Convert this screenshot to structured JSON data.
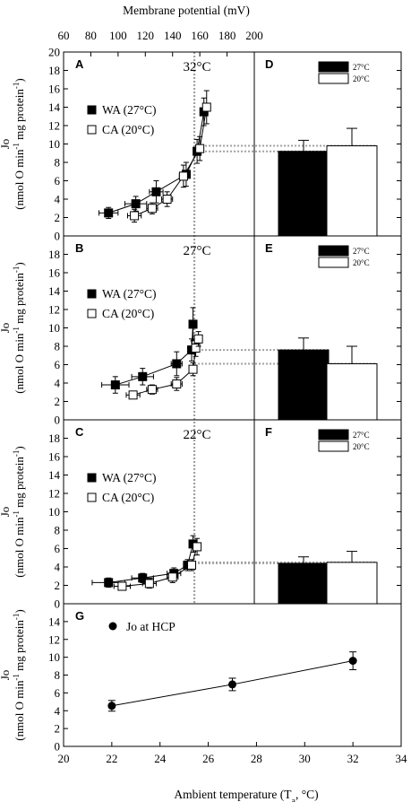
{
  "chart_data": {
    "type": "multi-panel",
    "top_axis": {
      "title": "Membrane potential (mV)",
      "range": [
        60,
        200
      ],
      "ticks": [
        "60",
        "80",
        "100",
        "120",
        "140",
        "160",
        "180",
        "200"
      ]
    },
    "x_axis": {
      "title_main": "Ambient temperature (T",
      "title_sub": "a",
      "title_end": ", °C)",
      "range": [
        20,
        34
      ],
      "ticks": [
        "20",
        "22",
        "24",
        "26",
        "28",
        "30",
        "32",
        "34"
      ]
    },
    "y_label": {
      "line1": "Jo",
      "line2_a": "(nmol O min",
      "line2_sup1": "-1",
      "line2_b": " mg protein",
      "line2_sup2": "-1",
      "line2_c": ")"
    },
    "hcp_potential_mV": 156,
    "colors": {
      "WA": "#000000",
      "CA": "#ffffff",
      "dotted_guide": "#a0a0a0"
    },
    "panels": [
      {
        "label": "A",
        "bar_label": "D",
        "temp_label": "32°C",
        "ylim": [
          0,
          20
        ],
        "yticks": [
          "0",
          "2",
          "4",
          "6",
          "8",
          "10",
          "12",
          "14",
          "16",
          "18",
          "20"
        ],
        "legend": [
          "WA (27°C)",
          "CA (20°C)"
        ],
        "series": [
          {
            "name": "WA (27°C)",
            "points": [
              {
                "x": 93,
                "y": 2.5,
                "xerr": 7,
                "yerr": 0.6
              },
              {
                "x": 113,
                "y": 3.5,
                "xerr": 8,
                "yerr": 0.8
              },
              {
                "x": 128,
                "y": 4.8,
                "xerr": 5,
                "yerr": 1.2
              },
              {
                "x": 150,
                "y": 6.7,
                "xerr": 3,
                "yerr": 1.3
              },
              {
                "x": 158,
                "y": 9.2,
                "xerr": 2,
                "yerr": 1.3
              },
              {
                "x": 163,
                "y": 13.5,
                "xerr": 2,
                "yerr": 1.5
              }
            ]
          },
          {
            "name": "CA (20°C)",
            "points": [
              {
                "x": 112,
                "y": 2.2,
                "xerr": 5,
                "yerr": 0.7
              },
              {
                "x": 125,
                "y": 3.0,
                "xerr": 4,
                "yerr": 0.6
              },
              {
                "x": 136,
                "y": 4.0,
                "xerr": 4,
                "yerr": 0.8
              },
              {
                "x": 148,
                "y": 6.5,
                "xerr": 3,
                "yerr": 1.2
              },
              {
                "x": 160,
                "y": 9.5,
                "xerr": 2,
                "yerr": 1.3
              },
              {
                "x": 165,
                "y": 14.0,
                "xerr": 2,
                "yerr": 1.8
              }
            ]
          }
        ],
        "bars": {
          "legend": [
            "27°C",
            "20°C"
          ],
          "values": [
            9.2,
            9.8
          ],
          "errors": [
            1.2,
            1.9
          ]
        }
      },
      {
        "label": "B",
        "bar_label": "E",
        "temp_label": "27°C",
        "ylim": [
          0,
          20
        ],
        "yticks": [
          "0",
          "2",
          "4",
          "6",
          "8",
          "10",
          "12",
          "14",
          "16",
          "18"
        ],
        "legend": [
          "WA (27°C)",
          "CA (20°C)"
        ],
        "series": [
          {
            "name": "WA (27°C)",
            "points": [
              {
                "x": 98,
                "y": 3.8,
                "xerr": 10,
                "yerr": 0.9
              },
              {
                "x": 118,
                "y": 4.7,
                "xerr": 8,
                "yerr": 0.9
              },
              {
                "x": 143,
                "y": 6.1,
                "xerr": 4,
                "yerr": 1.3
              },
              {
                "x": 154,
                "y": 7.6,
                "xerr": 3,
                "yerr": 1.2
              },
              {
                "x": 155,
                "y": 10.4,
                "xerr": 2,
                "yerr": 1.8
              }
            ]
          },
          {
            "name": "CA (20°C)",
            "points": [
              {
                "x": 111,
                "y": 2.7,
                "xerr": 5,
                "yerr": 0.4
              },
              {
                "x": 125,
                "y": 3.3,
                "xerr": 4,
                "yerr": 0.5
              },
              {
                "x": 143,
                "y": 3.9,
                "xerr": 4,
                "yerr": 0.7
              },
              {
                "x": 155,
                "y": 5.5,
                "xerr": 2,
                "yerr": 0.7
              },
              {
                "x": 157,
                "y": 7.8,
                "xerr": 2,
                "yerr": 0.9
              },
              {
                "x": 159,
                "y": 8.8,
                "xerr": 2,
                "yerr": 0.8
              }
            ]
          }
        ],
        "bars": {
          "legend": [
            "27°C",
            "20°C"
          ],
          "values": [
            7.6,
            6.1
          ],
          "errors": [
            1.3,
            1.9
          ]
        }
      },
      {
        "label": "C",
        "bar_label": "F",
        "temp_label": "22°C",
        "ylim": [
          0,
          20
        ],
        "yticks": [
          "0",
          "2",
          "4",
          "6",
          "8",
          "10",
          "12",
          "14",
          "16",
          "18"
        ],
        "legend": [
          "WA (27°C)",
          "CA (20°C)"
        ],
        "series": [
          {
            "name": "WA (27°C)",
            "points": [
              {
                "x": 93,
                "y": 2.3,
                "xerr": 12,
                "yerr": 0.5
              },
              {
                "x": 118,
                "y": 2.8,
                "xerr": 8,
                "yerr": 0.5
              },
              {
                "x": 141,
                "y": 3.3,
                "xerr": 5,
                "yerr": 0.6
              },
              {
                "x": 151,
                "y": 4.2,
                "xerr": 3,
                "yerr": 0.6
              },
              {
                "x": 155,
                "y": 6.5,
                "xerr": 2,
                "yerr": 0.9
              }
            ]
          },
          {
            "name": "CA (20°C)",
            "points": [
              {
                "x": 103,
                "y": 1.9,
                "xerr": 6,
                "yerr": 0.4
              },
              {
                "x": 123,
                "y": 2.2,
                "xerr": 5,
                "yerr": 0.5
              },
              {
                "x": 140,
                "y": 2.9,
                "xerr": 4,
                "yerr": 0.6
              },
              {
                "x": 154,
                "y": 4.2,
                "xerr": 2,
                "yerr": 0.6
              },
              {
                "x": 158,
                "y": 6.2,
                "xerr": 2,
                "yerr": 0.9
              }
            ]
          }
        ],
        "bars": {
          "legend": [
            "27°C",
            "20°C"
          ],
          "values": [
            4.4,
            4.5
          ],
          "errors": [
            0.7,
            1.2
          ]
        }
      }
    ],
    "bottom_panel": {
      "label": "G",
      "ylim": [
        0,
        16
      ],
      "yticks": [
        "0",
        "2",
        "4",
        "6",
        "8",
        "10",
        "12",
        "14"
      ],
      "legend": "Jo at HCP",
      "points": [
        {
          "x": 22,
          "y": 4.55,
          "yerr": 0.6
        },
        {
          "x": 27,
          "y": 6.95,
          "yerr": 0.7
        },
        {
          "x": 32,
          "y": 9.6,
          "yerr": 1.0
        }
      ]
    }
  }
}
